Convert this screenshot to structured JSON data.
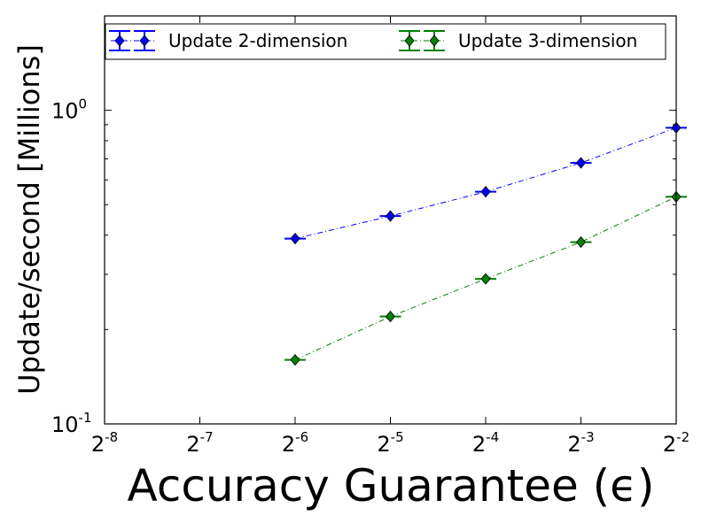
{
  "chart_data": {
    "type": "line",
    "title": "",
    "xlabel": "Accuracy Guarantee (ϵ)",
    "ylabel": "Update/second [Millions]",
    "x_scale": "log2",
    "y_scale": "log10",
    "xlim": [
      0.00390625,
      0.25
    ],
    "ylim": [
      0.1,
      2.0
    ],
    "x_ticks": [
      {
        "base": "2",
        "exp": "-8"
      },
      {
        "base": "2",
        "exp": "-7"
      },
      {
        "base": "2",
        "exp": "-6"
      },
      {
        "base": "2",
        "exp": "-5"
      },
      {
        "base": "2",
        "exp": "-4"
      },
      {
        "base": "2",
        "exp": "-3"
      },
      {
        "base": "2",
        "exp": "-2"
      }
    ],
    "y_ticks": [
      {
        "base": "10",
        "exp": "-1"
      },
      {
        "base": "10",
        "exp": "0"
      }
    ],
    "grid": false,
    "legend_position": "top",
    "x": [
      0.015625,
      0.03125,
      0.0625,
      0.125,
      0.25
    ],
    "series": [
      {
        "name": "Update 2-dimension",
        "color": "#0000ff",
        "marker": "diamond",
        "line_style": "dash-dot",
        "values": [
          0.39,
          0.46,
          0.55,
          0.68,
          0.88
        ]
      },
      {
        "name": "Update 3-dimension",
        "color": "#008000",
        "marker": "diamond",
        "line_style": "dash-dot",
        "values": [
          0.16,
          0.22,
          0.29,
          0.38,
          0.53
        ]
      }
    ]
  }
}
